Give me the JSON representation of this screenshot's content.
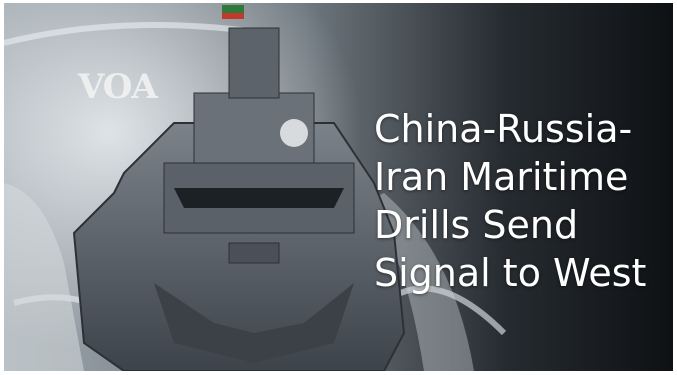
{
  "logo": {
    "text": "VOA"
  },
  "headline": {
    "lines": [
      "China-Russia-",
      "Iran Maritime",
      "Drills Send",
      "Signal to West"
    ]
  },
  "colors": {
    "sea_dark": "#0f1418",
    "sea_foam": "#c9cfd4",
    "hull": "#4a5057",
    "hull_light": "#6d747b",
    "text": "#ffffff"
  }
}
